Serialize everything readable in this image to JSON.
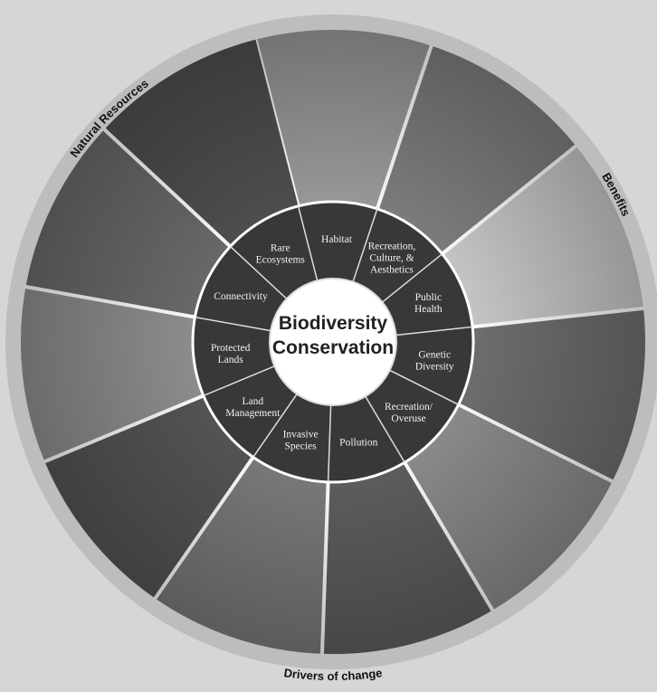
{
  "center": {
    "title_lines": [
      "Biodiversity",
      "Conservation"
    ]
  },
  "segments": [
    {
      "label_lines": [
        "Habitat"
      ]
    },
    {
      "label_lines": [
        "Recreation,",
        "Culture, &",
        "Aesthetics"
      ]
    },
    {
      "label_lines": [
        "Public",
        "Health"
      ]
    },
    {
      "label_lines": [
        "Genetic",
        "Diversity"
      ]
    },
    {
      "label_lines": [
        "Recreation/",
        "Overuse"
      ]
    },
    {
      "label_lines": [
        "Pollution"
      ]
    },
    {
      "label_lines": [
        "Invasive",
        "Species"
      ]
    },
    {
      "label_lines": [
        "Land",
        "Management"
      ]
    },
    {
      "label_lines": [
        "Protected",
        "Lands"
      ]
    },
    {
      "label_lines": [
        "Connectivity"
      ]
    },
    {
      "label_lines": [
        "Rare",
        "Ecosystems"
      ]
    }
  ],
  "ring_labels": {
    "top_left": "Natural Resources",
    "right": "Benefits",
    "bottom": "Drivers of change"
  }
}
